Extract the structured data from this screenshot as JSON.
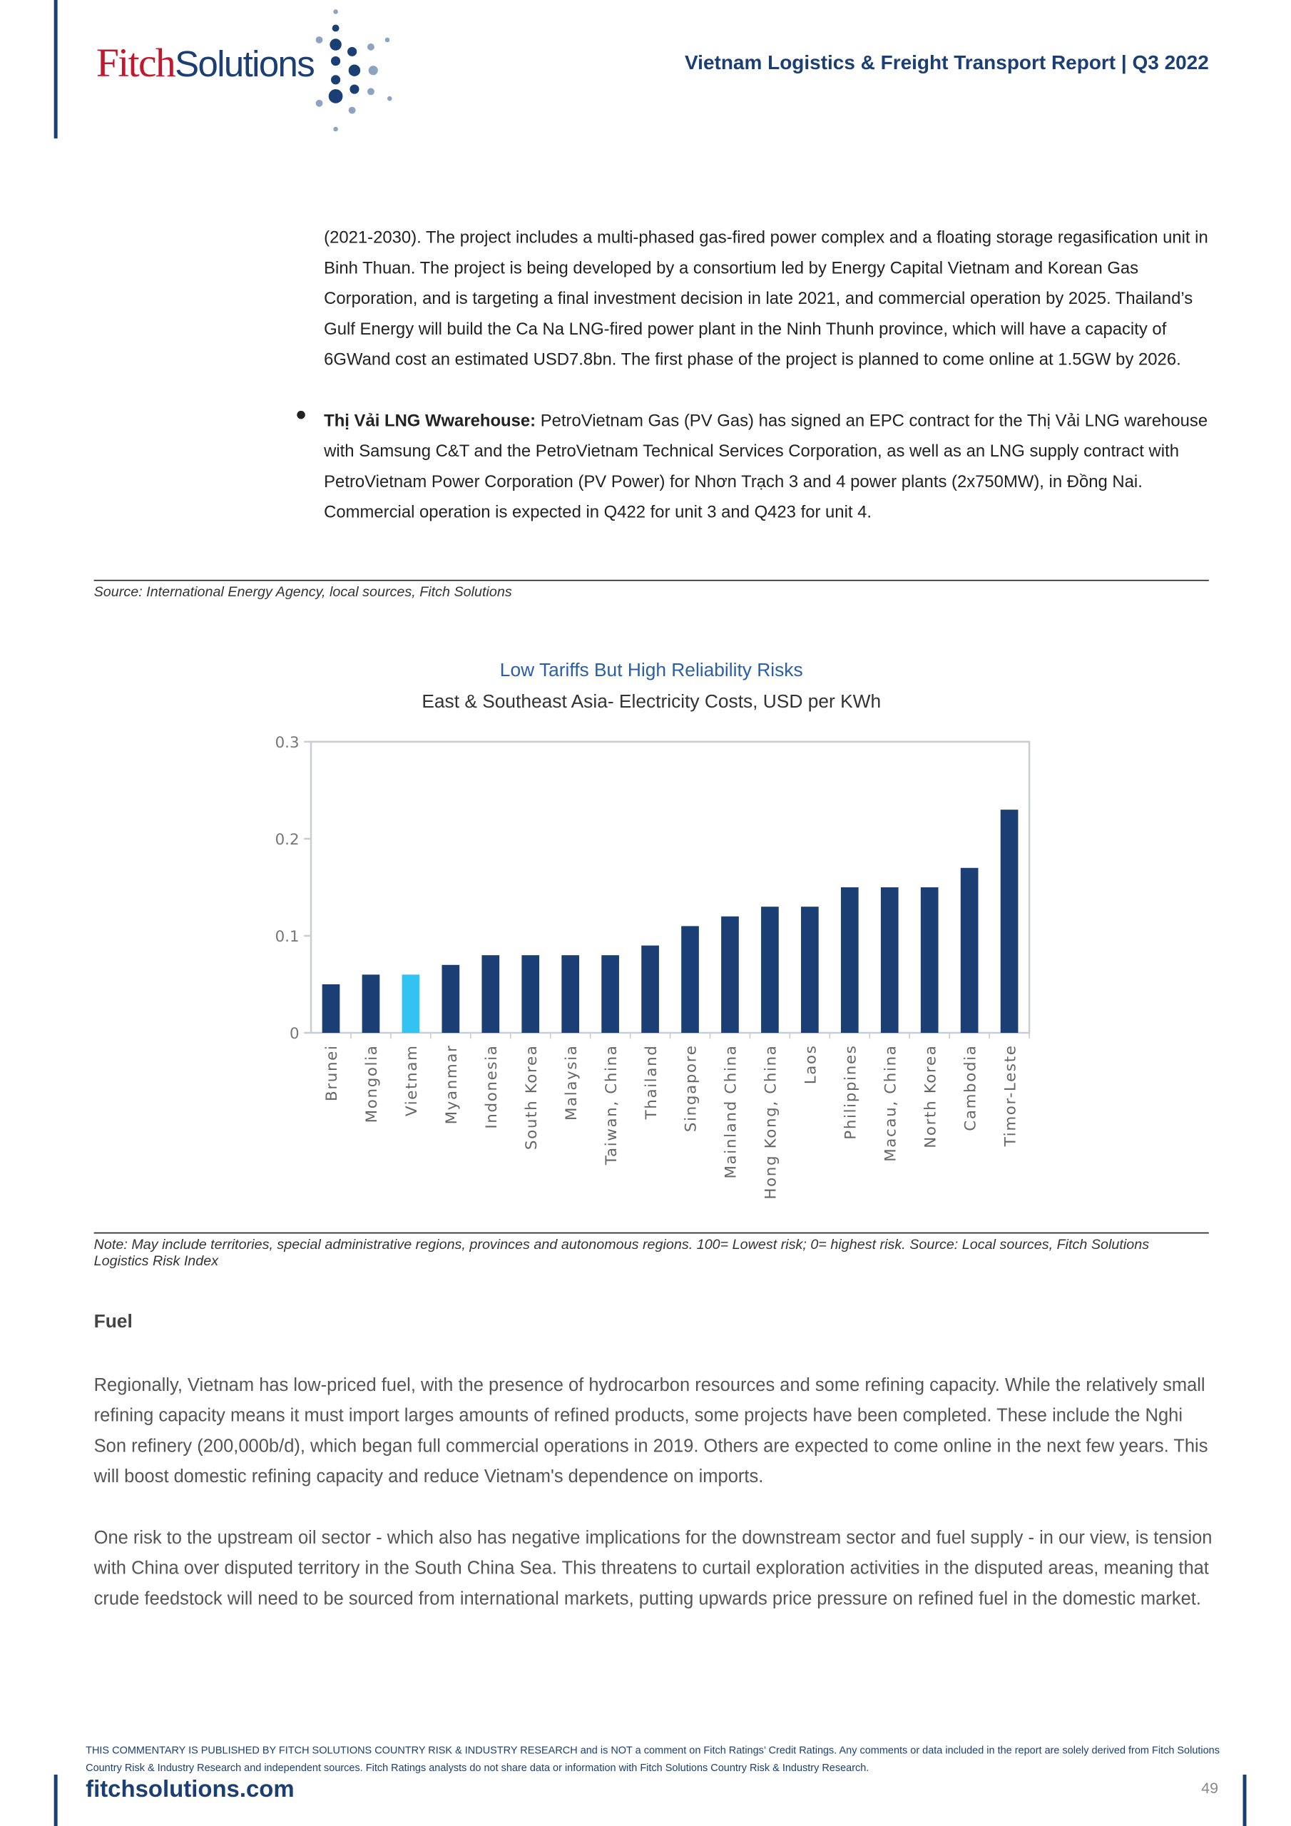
{
  "header": {
    "logo_fitch": "Fitch",
    "logo_solutions": "Solutions",
    "title": "Vietnam Logistics & Freight Transport Report | Q3 2022"
  },
  "body": {
    "paragraph_1": "(2021-2030). The project includes a multi-phased gas-fired power complex and a floating storage regasification unit in Binh Thuan. The project is being developed by a consortium led by Energy Capital Vietnam and Korean Gas Corporation, and is targeting a final investment decision in late 2021, and commercial operation by 2025. Thailand’s Gulf Energy will build the Ca Na LNG-fired power plant in the Ninh Thunh province, which will have a capacity of 6GWand cost an estimated USD7.8bn. The first phase of the project is planned to come online at 1.5GW by 2026.",
    "bullet_lead": "Thị Vải LNG Wwarehouse:",
    "bullet_text": " PetroVietnam Gas (PV Gas) has signed an EPC contract for the Thị Vải LNG warehouse with Samsung C&T and the PetroVietnam Technical Services Corporation, as well as an LNG supply contract with PetroVietnam Power Corporation (PV Power) for Nhơn Trạch 3 and 4 power plants (2x750MW), in Đồng Nai. Commercial operation is expected in Q422 for unit 3 and Q423 for unit 4.",
    "source": "Source: International Energy Agency, local sources, Fitch Solutions",
    "note": "Note: May include territories, special administrative regions, provinces and autonomous regions. 100= Lowest risk; 0= highest risk. Source: Local sources, Fitch Solutions Logistics Risk Index",
    "heading": "Fuel",
    "paragraph_2": "Regionally, Vietnam has low-priced fuel, with the presence of hydrocarbon resources and some refining capacity. While the relatively small refining capacity means it must import larges amounts of refined products, some projects have been completed. These include the Nghi Son refinery (200,000b/d), which began full commercial operations in 2019. Others are expected to come online in the next few years. This will boost domestic refining capacity and reduce Vietnam's dependence on imports.",
    "paragraph_3": "One risk to the upstream oil sector - which also has negative implications for the downstream sector and fuel supply - in our view, is tension with China over disputed territory in the South China Sea. This threatens to curtail exploration activities in the disputed areas, meaning that crude feedstock will need to be sourced from international markets, putting upwards price pressure on refined fuel in the domestic market."
  },
  "footer": {
    "disclaimer": "THIS COMMENTARY IS PUBLISHED BY FITCH SOLUTIONS COUNTRY RISK & INDUSTRY RESEARCH and is NOT a comment on Fitch Ratings’ Credit Ratings. Any comments or data included in the report are solely derived from Fitch Solutions Country Risk & Industry Research and independent sources. Fitch Ratings analysts do not share data or information with Fitch Solutions Country Risk & Industry Research.",
    "site": "fitchsolutions.com",
    "page": "49"
  },
  "chart_data": {
    "type": "bar",
    "title": "Low Tariffs But High Reliability Risks",
    "subtitle": "East & Southeast Asia- Electricity Costs, USD per KWh",
    "categories": [
      "Brunei",
      "Mongolia",
      "Vietnam",
      "Myanmar",
      "Indonesia",
      "South Korea",
      "Malaysia",
      "Taiwan, China",
      "Thailand",
      "Singapore",
      "Mainland China",
      "Hong Kong, China",
      "Laos",
      "Philippines",
      "Macau, China",
      "North Korea",
      "Cambodia",
      "Timor-Leste"
    ],
    "values": [
      0.05,
      0.06,
      0.06,
      0.07,
      0.08,
      0.08,
      0.08,
      0.08,
      0.09,
      0.11,
      0.12,
      0.13,
      0.13,
      0.15,
      0.15,
      0.15,
      0.17,
      0.23
    ],
    "colors": [
      "#1b3f74",
      "#1b3f74",
      "#33c3f0",
      "#1b3f74",
      "#1b3f74",
      "#1b3f74",
      "#1b3f74",
      "#1b3f74",
      "#1b3f74",
      "#1b3f74",
      "#1b3f74",
      "#1b3f74",
      "#1b3f74",
      "#1b3f74",
      "#1b3f74",
      "#1b3f74",
      "#1b3f74",
      "#1b3f74"
    ],
    "ylim": [
      0,
      0.3
    ],
    "yticks": [
      0,
      0.1,
      0.2,
      0.3
    ],
    "grid": false
  }
}
